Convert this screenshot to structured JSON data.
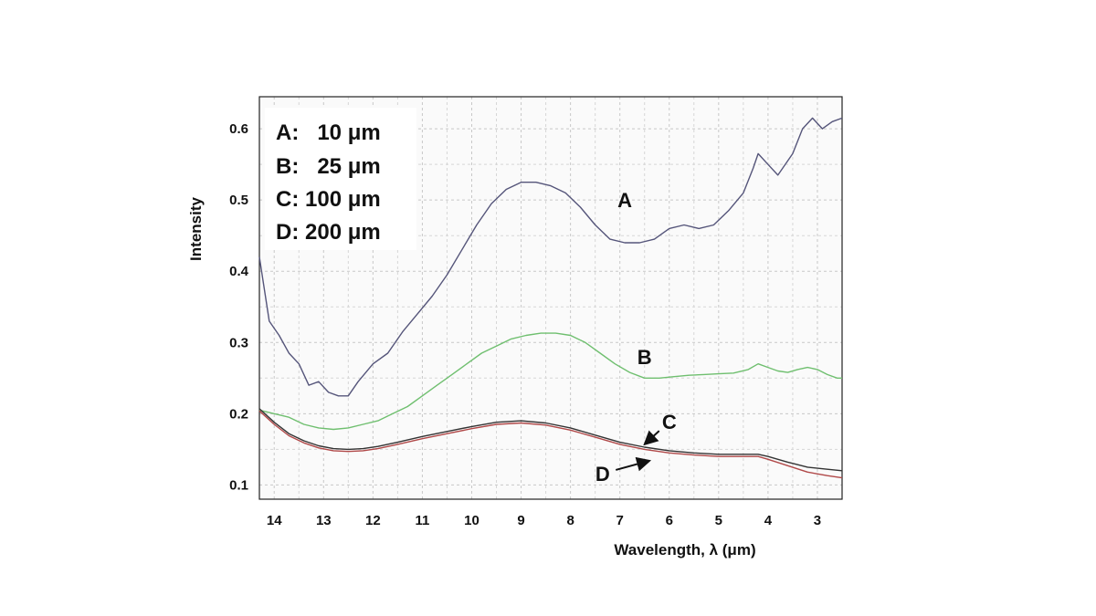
{
  "chart_data": {
    "type": "line",
    "xlabel": "Wavelength, λ (μm)",
    "ylabel": "Intensity",
    "xlim": [
      14.3,
      2.5
    ],
    "ylim": [
      0.08,
      0.645
    ],
    "x_reversed": true,
    "grid": true,
    "x_ticks": [
      14,
      13,
      12,
      11,
      10,
      9,
      8,
      7,
      6,
      5,
      4,
      3
    ],
    "y_ticks": [
      0.1,
      0.2,
      0.3,
      0.4,
      0.5,
      0.6
    ],
    "y_tick_labels": [
      "0.1",
      "0.2",
      "0.3",
      "0.4",
      "0.5",
      "0.6"
    ],
    "legend": {
      "placement": "top-left",
      "entries": [
        "A:   10 μm",
        "B:   25 μm",
        "C: 100 μm",
        "D: 200 μm"
      ]
    },
    "series": [
      {
        "name": "A",
        "color": "#55557a",
        "x": [
          14.3,
          14.1,
          13.9,
          13.7,
          13.5,
          13.3,
          13.1,
          12.9,
          12.7,
          12.5,
          12.3,
          12.0,
          11.7,
          11.4,
          11.1,
          10.8,
          10.5,
          10.2,
          9.9,
          9.6,
          9.3,
          9.0,
          8.7,
          8.4,
          8.1,
          7.8,
          7.5,
          7.2,
          6.9,
          6.6,
          6.3,
          6.0,
          5.7,
          5.4,
          5.1,
          4.8,
          4.5,
          4.3,
          4.2,
          4.0,
          3.8,
          3.5,
          3.3,
          3.1,
          2.9,
          2.7,
          2.5
        ],
        "y": [
          0.42,
          0.33,
          0.31,
          0.285,
          0.27,
          0.24,
          0.245,
          0.23,
          0.225,
          0.225,
          0.245,
          0.27,
          0.285,
          0.315,
          0.34,
          0.365,
          0.395,
          0.43,
          0.465,
          0.495,
          0.515,
          0.525,
          0.525,
          0.52,
          0.51,
          0.49,
          0.465,
          0.445,
          0.44,
          0.44,
          0.445,
          0.46,
          0.465,
          0.46,
          0.465,
          0.485,
          0.51,
          0.545,
          0.565,
          0.55,
          0.535,
          0.565,
          0.6,
          0.615,
          0.6,
          0.61,
          0.615
        ]
      },
      {
        "name": "B",
        "color": "#6fbf6f",
        "x": [
          14.3,
          14.0,
          13.7,
          13.4,
          13.1,
          12.8,
          12.5,
          12.2,
          11.9,
          11.6,
          11.3,
          11.0,
          10.7,
          10.4,
          10.1,
          9.8,
          9.5,
          9.2,
          8.9,
          8.6,
          8.3,
          8.0,
          7.7,
          7.4,
          7.1,
          6.8,
          6.5,
          6.2,
          5.9,
          5.6,
          5.3,
          5.0,
          4.7,
          4.4,
          4.2,
          4.0,
          3.8,
          3.6,
          3.4,
          3.2,
          3.0,
          2.8,
          2.6,
          2.5
        ],
        "y": [
          0.205,
          0.2,
          0.195,
          0.185,
          0.18,
          0.178,
          0.18,
          0.185,
          0.19,
          0.2,
          0.21,
          0.225,
          0.24,
          0.255,
          0.27,
          0.285,
          0.295,
          0.305,
          0.31,
          0.313,
          0.313,
          0.31,
          0.3,
          0.285,
          0.27,
          0.258,
          0.25,
          0.25,
          0.252,
          0.254,
          0.255,
          0.256,
          0.257,
          0.262,
          0.27,
          0.265,
          0.26,
          0.258,
          0.262,
          0.265,
          0.262,
          0.255,
          0.25,
          0.25
        ]
      },
      {
        "name": "C",
        "color": "#333333",
        "x": [
          14.3,
          14.0,
          13.7,
          13.4,
          13.1,
          12.8,
          12.5,
          12.2,
          11.9,
          11.5,
          11.0,
          10.5,
          10.0,
          9.5,
          9.0,
          8.5,
          8.0,
          7.5,
          7.0,
          6.5,
          6.0,
          5.5,
          5.0,
          4.5,
          4.2,
          4.0,
          3.6,
          3.2,
          2.8,
          2.5
        ],
        "y": [
          0.207,
          0.188,
          0.172,
          0.162,
          0.155,
          0.151,
          0.15,
          0.151,
          0.154,
          0.16,
          0.168,
          0.175,
          0.182,
          0.188,
          0.19,
          0.187,
          0.18,
          0.17,
          0.16,
          0.153,
          0.148,
          0.145,
          0.143,
          0.143,
          0.143,
          0.14,
          0.132,
          0.125,
          0.122,
          0.12
        ]
      },
      {
        "name": "D",
        "color": "#b04848",
        "x": [
          14.3,
          14.0,
          13.7,
          13.4,
          13.1,
          12.8,
          12.5,
          12.2,
          11.9,
          11.5,
          11.0,
          10.5,
          10.0,
          9.5,
          9.0,
          8.5,
          8.0,
          7.5,
          7.0,
          6.5,
          6.0,
          5.5,
          5.0,
          4.5,
          4.2,
          4.0,
          3.6,
          3.2,
          2.8,
          2.5
        ],
        "y": [
          0.204,
          0.185,
          0.169,
          0.159,
          0.152,
          0.148,
          0.147,
          0.148,
          0.151,
          0.157,
          0.165,
          0.172,
          0.179,
          0.185,
          0.187,
          0.184,
          0.177,
          0.167,
          0.157,
          0.15,
          0.145,
          0.142,
          0.14,
          0.14,
          0.14,
          0.136,
          0.127,
          0.118,
          0.113,
          0.11
        ]
      }
    ],
    "annotations": [
      {
        "text": "A",
        "x": 6.9,
        "y": 0.5
      },
      {
        "text": "B",
        "x": 6.5,
        "y": 0.28
      },
      {
        "text": "C",
        "x": 6.0,
        "y": 0.189,
        "arrow_to": [
          6.5,
          0.157
        ]
      },
      {
        "text": "D",
        "x": 7.35,
        "y": 0.116,
        "arrow_to": [
          6.4,
          0.134
        ]
      }
    ]
  }
}
